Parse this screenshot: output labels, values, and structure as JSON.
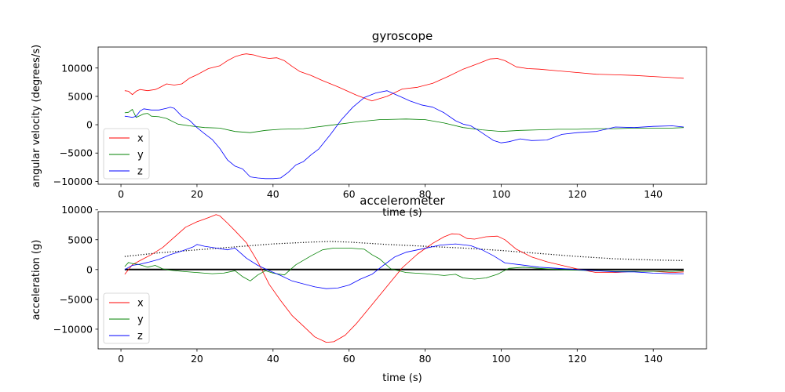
{
  "chart_data": [
    {
      "type": "line",
      "title": "gyroscope",
      "xlabel": "time (s)",
      "ylabel": "angular velocity (degrees/s)",
      "xlim": [
        -6,
        154
      ],
      "ylim": [
        -10500,
        13700
      ],
      "xticks": [
        0,
        20,
        40,
        60,
        80,
        100,
        120,
        140
      ],
      "yticks": [
        -10000,
        -5000,
        0,
        5000,
        10000
      ],
      "legend_position": "lower-left",
      "grid": false,
      "series": [
        {
          "name": "x",
          "color": "#ff0000",
          "x": [
            1,
            2,
            3,
            4,
            5,
            7,
            9,
            10,
            12,
            14,
            16,
            18,
            20,
            23,
            26,
            28,
            30,
            32,
            33,
            35,
            37,
            39,
            41,
            43,
            45,
            47,
            50,
            53,
            57,
            62,
            66,
            70,
            74,
            78,
            82,
            86,
            90,
            94,
            97,
            99,
            101,
            104,
            107,
            110,
            115,
            120,
            125,
            130,
            135,
            140,
            145,
            148
          ],
          "y": [
            6000,
            5900,
            5300,
            5900,
            6200,
            6000,
            6200,
            6500,
            7200,
            7000,
            7200,
            8200,
            8800,
            9900,
            10400,
            11300,
            12000,
            12400,
            12500,
            12300,
            11900,
            11700,
            11800,
            11300,
            10300,
            9400,
            8700,
            7800,
            6700,
            5200,
            4200,
            5000,
            6300,
            6600,
            7300,
            8500,
            9800,
            10800,
            11600,
            11700,
            11300,
            10200,
            9900,
            9800,
            9500,
            9200,
            8900,
            8800,
            8700,
            8500,
            8300,
            8200
          ]
        },
        {
          "name": "y",
          "color": "#008000",
          "x": [
            1,
            2,
            3,
            4,
            5,
            6,
            7,
            8,
            10,
            12,
            15,
            18,
            22,
            26,
            30,
            34,
            38,
            42,
            48,
            55,
            62,
            68,
            75,
            80,
            85,
            90,
            95,
            100,
            105,
            110,
            115,
            120,
            125,
            130,
            135,
            140,
            145,
            148
          ],
          "y": [
            2100,
            2200,
            2700,
            1300,
            1600,
            1900,
            2000,
            1500,
            1400,
            1100,
            100,
            -200,
            -500,
            -600,
            -1200,
            -1400,
            -1000,
            -800,
            -700,
            -100,
            500,
            900,
            1000,
            900,
            300,
            -500,
            -900,
            -1200,
            -1000,
            -900,
            -800,
            -800,
            -700,
            -700,
            -600,
            -600,
            -600,
            -500
          ]
        },
        {
          "name": "z",
          "color": "#0000ff",
          "x": [
            1,
            2,
            3,
            4,
            5,
            6,
            8,
            10,
            12,
            13,
            14,
            16,
            18,
            20,
            22,
            24,
            26,
            28,
            30,
            32,
            34,
            36,
            38,
            40,
            42,
            44,
            46,
            48,
            50,
            52,
            55,
            58,
            61,
            64,
            67,
            70,
            73,
            76,
            79,
            82,
            85,
            88,
            90,
            92,
            94,
            96,
            98,
            100,
            102,
            105,
            108,
            112,
            116,
            120,
            125,
            130,
            135,
            140,
            145,
            148
          ],
          "y": [
            1500,
            1400,
            1300,
            1500,
            2400,
            2800,
            2600,
            2600,
            2900,
            3100,
            2900,
            1500,
            800,
            -500,
            -1600,
            -2600,
            -4200,
            -6200,
            -7300,
            -7800,
            -9200,
            -9400,
            -9500,
            -9500,
            -9400,
            -8400,
            -7100,
            -6500,
            -5300,
            -4300,
            -1800,
            900,
            3100,
            4800,
            5600,
            6000,
            5100,
            4200,
            3500,
            3100,
            2100,
            700,
            100,
            -200,
            -1000,
            -1900,
            -2800,
            -3200,
            -3000,
            -2500,
            -2800,
            -2700,
            -1700,
            -1400,
            -1200,
            -400,
            -500,
            -300,
            -200,
            -400
          ]
        }
      ]
    },
    {
      "type": "line",
      "title": "accelerometer",
      "xlabel": "time (s)",
      "ylabel": "acceleration (g)",
      "xlim": [
        -6,
        154
      ],
      "ylim": [
        -13300,
        9700
      ],
      "xticks": [
        0,
        20,
        40,
        60,
        80,
        100,
        120,
        140
      ],
      "yticks": [
        -10000,
        -5000,
        0,
        5000,
        10000
      ],
      "legend_position": "lower-left",
      "grid": false,
      "series": [
        {
          "name": "x",
          "color": "#ff0000",
          "x": [
            1,
            3,
            5,
            8,
            11,
            14,
            17,
            20,
            23,
            25,
            26,
            28,
            30,
            33,
            36,
            39,
            42,
            45,
            48,
            51,
            54,
            56,
            59,
            62,
            66,
            70,
            74,
            78,
            82,
            85,
            87,
            89,
            91,
            93,
            96,
            99,
            101,
            104,
            108,
            112,
            116,
            120,
            125,
            130,
            135,
            140,
            145,
            148
          ],
          "y": [
            -800,
            800,
            1500,
            2500,
            3700,
            5400,
            7100,
            8000,
            8700,
            9200,
            9000,
            7800,
            6500,
            4500,
            1300,
            -2500,
            -5200,
            -7700,
            -9500,
            -11300,
            -12200,
            -12100,
            -11000,
            -9000,
            -5900,
            -2800,
            300,
            2600,
            4400,
            5500,
            6000,
            5900,
            5200,
            5100,
            5500,
            5600,
            5000,
            3400,
            2100,
            1300,
            700,
            100,
            -500,
            -500,
            -300,
            -300,
            -500,
            -400
          ]
        },
        {
          "name": "y",
          "color": "#008000",
          "x": [
            1,
            2,
            3,
            5,
            7,
            9,
            11,
            13,
            16,
            20,
            24,
            27,
            30,
            32,
            34,
            36,
            38,
            40,
            43,
            46,
            50,
            53,
            56,
            60,
            64,
            66,
            68,
            71,
            75,
            80,
            85,
            88,
            90,
            93,
            96,
            99,
            102,
            106,
            110,
            115,
            120,
            125,
            130,
            135,
            140,
            145,
            148
          ],
          "y": [
            500,
            1200,
            1000,
            800,
            400,
            700,
            100,
            -100,
            -300,
            -500,
            -700,
            -600,
            -200,
            -1200,
            -1900,
            -900,
            -200,
            -600,
            -900,
            800,
            2300,
            3300,
            3600,
            3600,
            3400,
            2500,
            1800,
            100,
            -500,
            -700,
            -1000,
            -800,
            -1400,
            -1600,
            -1400,
            -800,
            200,
            400,
            200,
            0,
            -100,
            -200,
            -300,
            -300,
            -300,
            -300,
            -200
          ]
        },
        {
          "name": "z",
          "color": "#0000ff",
          "x": [
            1,
            3,
            5,
            7,
            10,
            13,
            16,
            19,
            20,
            22,
            25,
            28,
            30,
            33,
            36,
            39,
            42,
            45,
            48,
            51,
            54,
            57,
            60,
            63,
            66,
            69,
            72,
            75,
            78,
            81,
            84,
            88,
            92,
            95,
            98,
            101,
            105,
            110,
            115,
            120,
            125,
            130,
            135,
            140,
            145,
            148
          ],
          "y": [
            0,
            700,
            900,
            1200,
            1700,
            2500,
            3100,
            3800,
            4200,
            3900,
            3600,
            3300,
            3600,
            1900,
            700,
            -200,
            -1000,
            -1900,
            -2400,
            -2900,
            -3200,
            -3100,
            -2600,
            -1600,
            -800,
            700,
            2100,
            2900,
            3300,
            3700,
            4100,
            4300,
            4000,
            3300,
            2300,
            1100,
            800,
            400,
            200,
            0,
            -200,
            -400,
            -400,
            -600,
            -700,
            -700
          ]
        }
      ],
      "extra_lines": [
        {
          "style": "dotted",
          "color": "#000000",
          "x": [
            1,
            10,
            20,
            30,
            40,
            50,
            55,
            60,
            70,
            80,
            90,
            100,
            110,
            120,
            130,
            140,
            148
          ],
          "y": [
            2200,
            2800,
            3300,
            3800,
            4300,
            4600,
            4700,
            4600,
            4200,
            3900,
            3600,
            3200,
            2700,
            2200,
            1800,
            1600,
            1500
          ]
        },
        {
          "style": "solid",
          "color": "#000000",
          "x": [
            1,
            148
          ],
          "y": [
            0,
            0
          ]
        }
      ]
    }
  ]
}
